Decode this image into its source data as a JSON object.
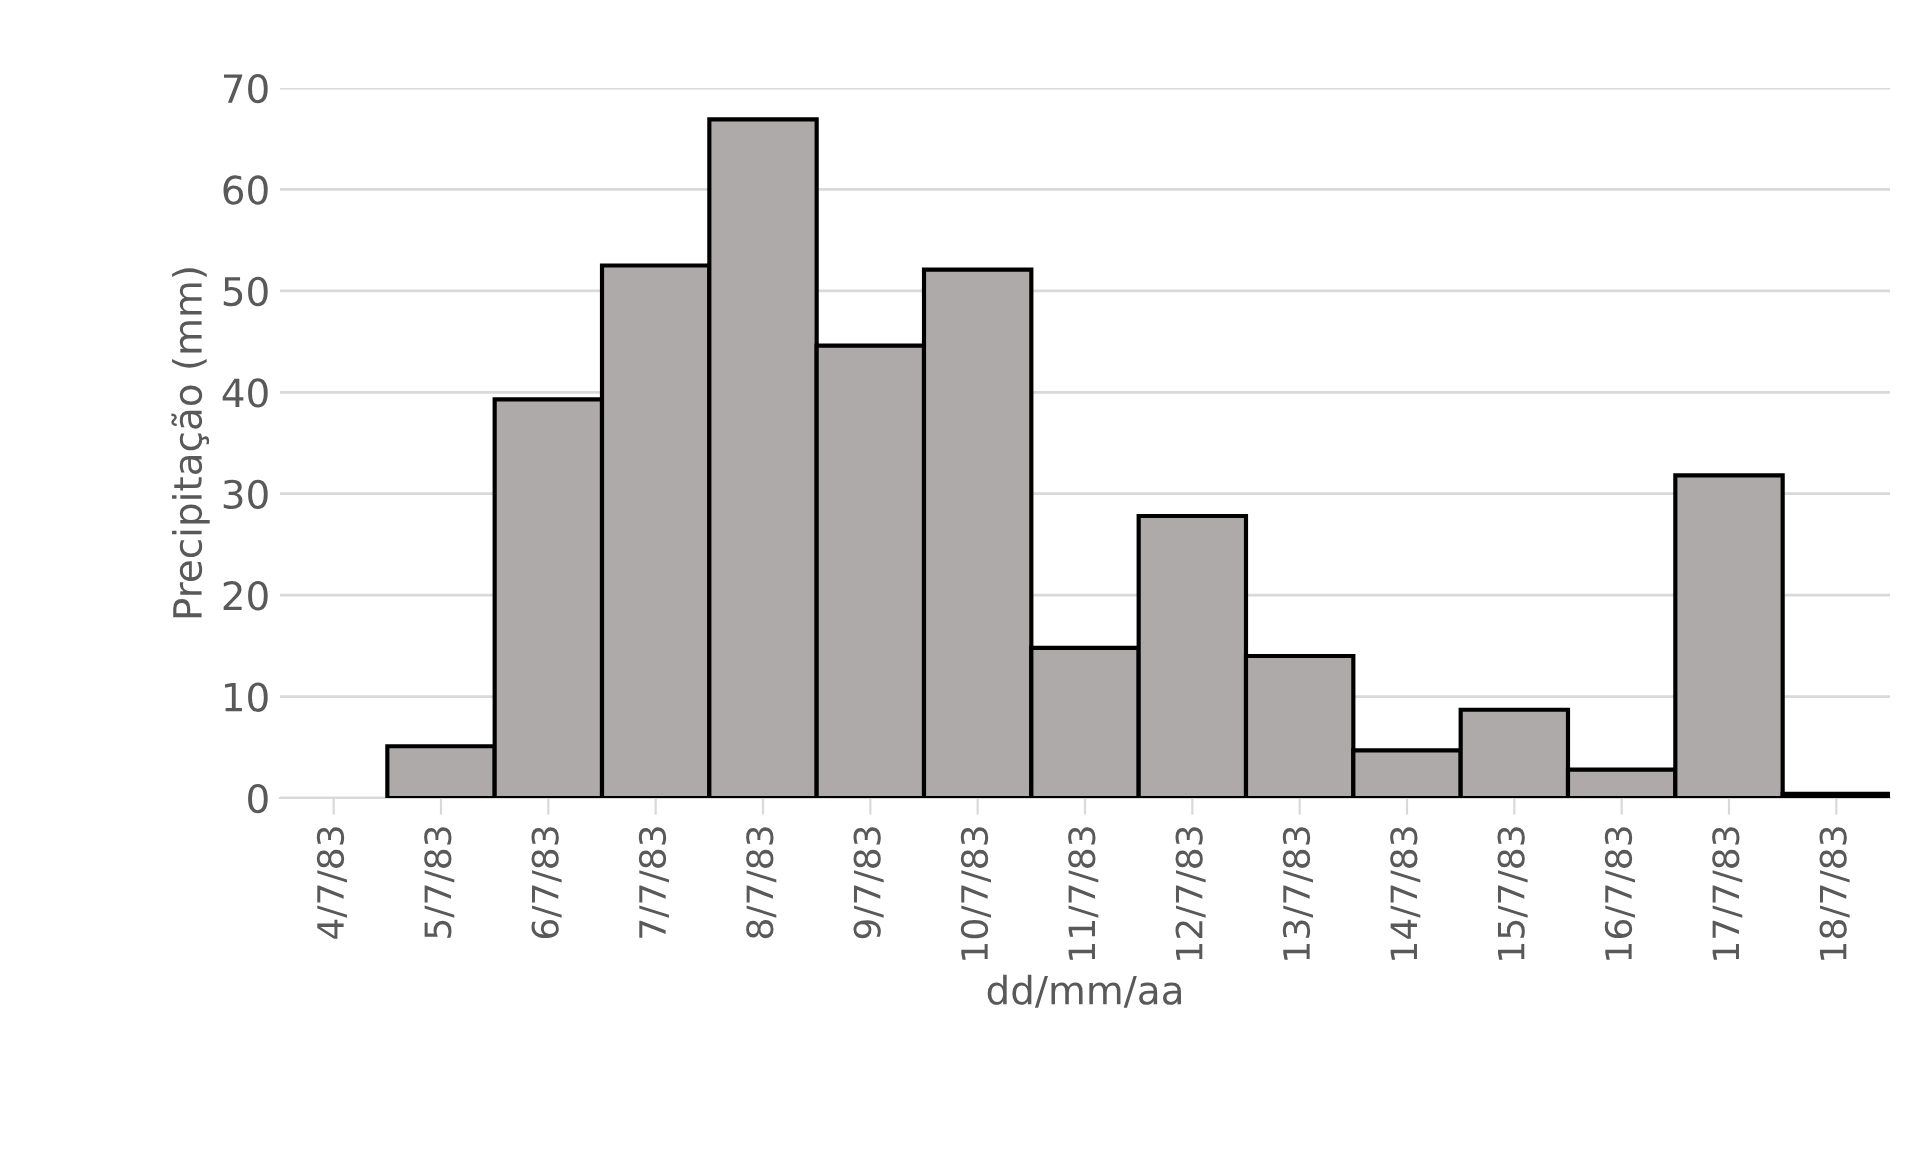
{
  "chart_data": {
    "type": "bar",
    "xlabel": "dd/mm/aa",
    "ylabel": "Precipitação (mm)",
    "categories": [
      "4/7/83",
      "5/7/83",
      "6/7/83",
      "7/7/83",
      "8/7/83",
      "9/7/83",
      "10/7/83",
      "11/7/83",
      "12/7/83",
      "13/7/83",
      "14/7/83",
      "15/7/83",
      "16/7/83",
      "17/7/83",
      "18/7/83"
    ],
    "values": [
      null,
      5.1,
      39.3,
      52.5,
      66.9,
      44.6,
      52.1,
      14.8,
      27.8,
      14.0,
      4.7,
      8.7,
      2.8,
      31.8,
      0.4
    ],
    "color": "#aeaaaa",
    "ylim": [
      0,
      70
    ],
    "yticks": [
      0,
      10,
      20,
      30,
      40,
      50,
      60,
      70
    ],
    "grid": "y",
    "legend": false
  }
}
